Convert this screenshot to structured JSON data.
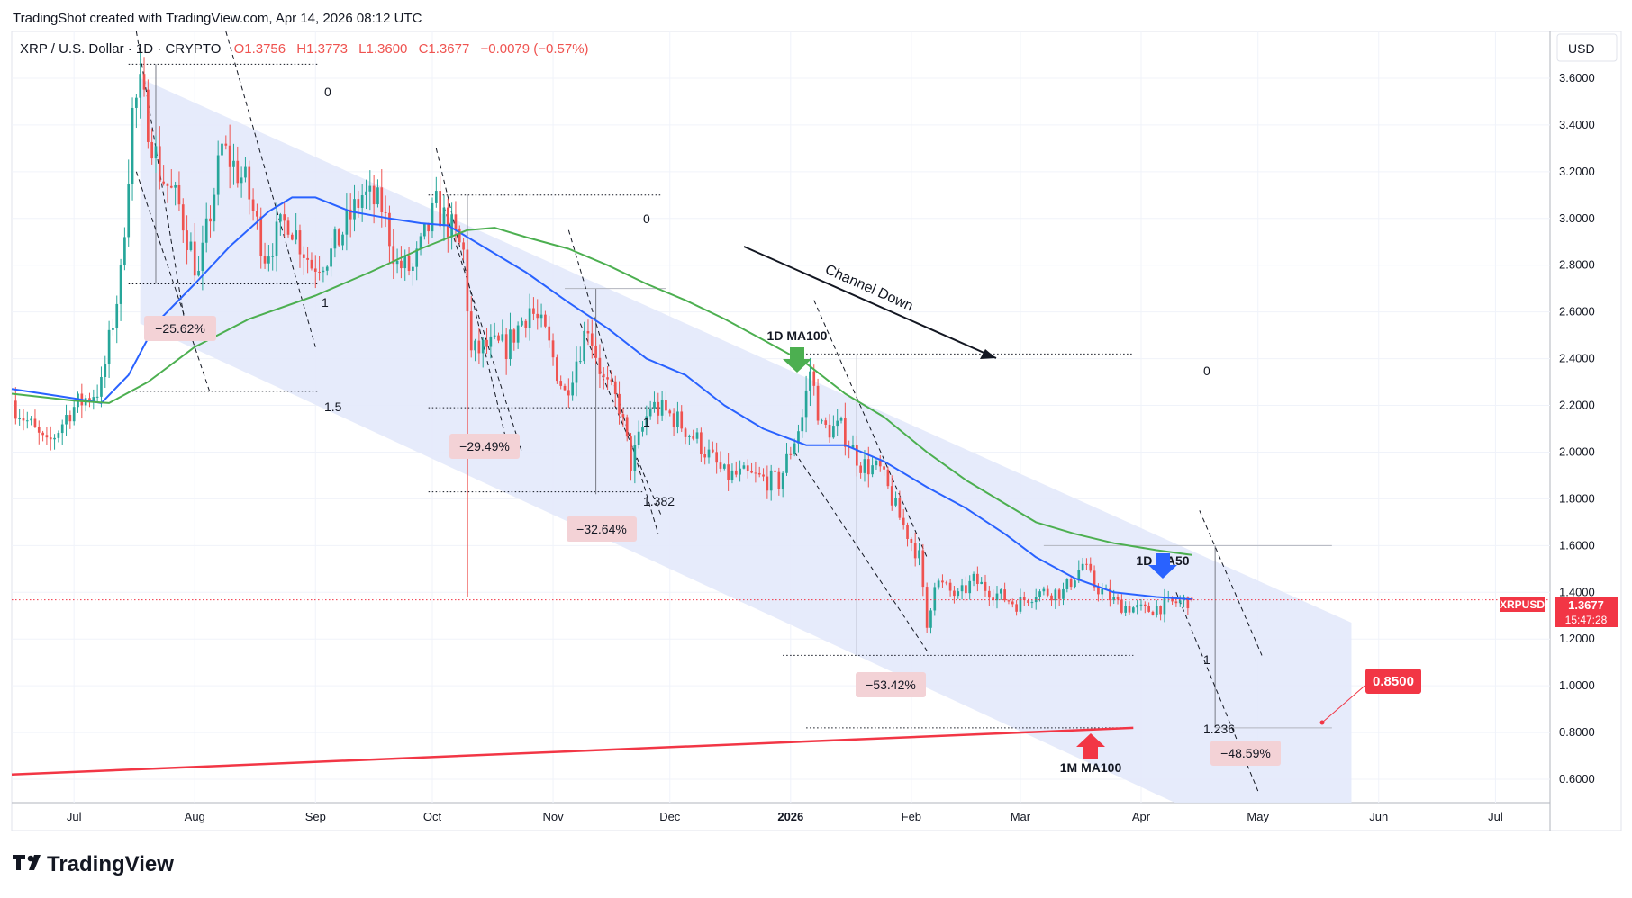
{
  "header": {
    "credit": "TradingShot created with TradingView.com, Apr 14, 2026 08:12 UTC"
  },
  "legend": {
    "symbol": "XRP / U.S. Dollar · 1D · CRYPTO",
    "open": "O1.3756",
    "high": "H1.3773",
    "low": "L1.3600",
    "close": "C1.3677",
    "change": "−0.0079 (−0.57%)"
  },
  "currency": "USD",
  "price_tag": {
    "symbol": "XRPUSD",
    "price": "1.3677",
    "countdown": "15:47:28"
  },
  "target_tag": {
    "label": "0.8500"
  },
  "brand": {
    "name": "TradingView"
  },
  "colors": {
    "up": "#26a69a",
    "down": "#ef5350",
    "ma50": "#2962ff",
    "ma100": "#4caf50",
    "mma100": "#f23645",
    "channel": "#e3e9fb",
    "pct_box": "#f3d2d6",
    "tag": "#f23645"
  },
  "annotations": {
    "channel_label": "Channel Down",
    "ma100_label": "1D MA100",
    "ma50_label": "1D MA50",
    "mma100_label": "1M MA100"
  },
  "fib_labels": [
    {
      "id": "f1",
      "text": "0"
    },
    {
      "id": "f2",
      "text": "1"
    },
    {
      "id": "f3",
      "text": "1.5"
    },
    {
      "id": "f4",
      "text": "0"
    },
    {
      "id": "f5",
      "text": "1"
    },
    {
      "id": "f6",
      "text": "1.382"
    },
    {
      "id": "f7",
      "text": "0"
    },
    {
      "id": "f8",
      "text": "1"
    },
    {
      "id": "f9",
      "text": "1.236"
    }
  ],
  "pct_boxes": [
    {
      "id": "p1",
      "text": "−25.62%"
    },
    {
      "id": "p2",
      "text": "−29.49%"
    },
    {
      "id": "p3",
      "text": "−32.64%"
    },
    {
      "id": "p4",
      "text": "−53.42%"
    },
    {
      "id": "p5",
      "text": "−48.59%"
    }
  ],
  "chart_data": {
    "type": "candlestick",
    "title": "XRP / U.S. Dollar · 1D · CRYPTO",
    "xlabel": "",
    "ylabel": "",
    "y_scale": "linear",
    "ylim": [
      0.5,
      3.8
    ],
    "x_range": [
      "2025-06-15",
      "2026-07-15"
    ],
    "grid": true,
    "legend": "top-left",
    "x_tick_labels": [
      "Jul",
      "Aug",
      "Sep",
      "Oct",
      "Nov",
      "Dec",
      "2026",
      "Feb",
      "Mar",
      "Apr",
      "May",
      "Jun",
      "Jul"
    ],
    "y_tick_labels": [
      "0.6000",
      "0.8000",
      "1.0000",
      "1.2000",
      "1.4000",
      "1.6000",
      "1.8000",
      "2.0000",
      "2.2000",
      "2.4000",
      "2.6000",
      "2.8000",
      "3.0000",
      "3.2000",
      "3.4000",
      "3.6000"
    ],
    "price_anchors": [
      {
        "date": "2025-06-15",
        "close": 2.22
      },
      {
        "date": "2025-06-24",
        "close": 2.02
      },
      {
        "date": "2025-06-30",
        "close": 2.18
      },
      {
        "date": "2025-07-08",
        "close": 2.28
      },
      {
        "date": "2025-07-13",
        "close": 2.75
      },
      {
        "date": "2025-07-16",
        "close": 3.45
      },
      {
        "date": "2025-07-18",
        "close": 3.55
      },
      {
        "date": "2025-07-23",
        "close": 3.2
      },
      {
        "date": "2025-07-28",
        "close": 3.05
      },
      {
        "date": "2025-08-02",
        "close": 2.75
      },
      {
        "date": "2025-08-08",
        "close": 3.3
      },
      {
        "date": "2025-08-14",
        "close": 3.15
      },
      {
        "date": "2025-08-19",
        "close": 2.85
      },
      {
        "date": "2025-08-25",
        "close": 3.0
      },
      {
        "date": "2025-08-31",
        "close": 2.8
      },
      {
        "date": "2025-09-05",
        "close": 2.85
      },
      {
        "date": "2025-09-13",
        "close": 3.1
      },
      {
        "date": "2025-09-18",
        "close": 3.05
      },
      {
        "date": "2025-09-22",
        "close": 2.8
      },
      {
        "date": "2025-09-26",
        "close": 2.78
      },
      {
        "date": "2025-10-02",
        "close": 3.05
      },
      {
        "date": "2025-10-06",
        "close": 2.95
      },
      {
        "date": "2025-10-09",
        "close": 2.85
      },
      {
        "date": "2025-10-11",
        "close": 2.42
      },
      {
        "date": "2025-10-15",
        "close": 2.45
      },
      {
        "date": "2025-10-20",
        "close": 2.45
      },
      {
        "date": "2025-10-26",
        "close": 2.62
      },
      {
        "date": "2025-10-30",
        "close": 2.5
      },
      {
        "date": "2025-11-04",
        "close": 2.25
      },
      {
        "date": "2025-11-10",
        "close": 2.55
      },
      {
        "date": "2025-11-14",
        "close": 2.3
      },
      {
        "date": "2025-11-18",
        "close": 2.2
      },
      {
        "date": "2025-11-21",
        "close": 1.95
      },
      {
        "date": "2025-11-26",
        "close": 2.2
      },
      {
        "date": "2025-12-02",
        "close": 2.15
      },
      {
        "date": "2025-12-08",
        "close": 2.05
      },
      {
        "date": "2025-12-15",
        "close": 1.9
      },
      {
        "date": "2025-12-20",
        "close": 1.9
      },
      {
        "date": "2025-12-29",
        "close": 1.87
      },
      {
        "date": "2026-01-04",
        "close": 2.15
      },
      {
        "date": "2026-01-06",
        "close": 2.35
      },
      {
        "date": "2026-01-09",
        "close": 2.1
      },
      {
        "date": "2026-01-14",
        "close": 2.1
      },
      {
        "date": "2026-01-19",
        "close": 1.95
      },
      {
        "date": "2026-01-24",
        "close": 1.92
      },
      {
        "date": "2026-01-29",
        "close": 1.72
      },
      {
        "date": "2026-02-03",
        "close": 1.55
      },
      {
        "date": "2026-02-05",
        "close": 1.25
      },
      {
        "date": "2026-02-07",
        "close": 1.45
      },
      {
        "date": "2026-02-13",
        "close": 1.38
      },
      {
        "date": "2026-02-17",
        "close": 1.45
      },
      {
        "date": "2026-02-22",
        "close": 1.4
      },
      {
        "date": "2026-02-28",
        "close": 1.35
      },
      {
        "date": "2026-03-05",
        "close": 1.4
      },
      {
        "date": "2026-03-12",
        "close": 1.4
      },
      {
        "date": "2026-03-17",
        "close": 1.52
      },
      {
        "date": "2026-03-20",
        "close": 1.43
      },
      {
        "date": "2026-03-26",
        "close": 1.35
      },
      {
        "date": "2026-04-02",
        "close": 1.32
      },
      {
        "date": "2026-04-08",
        "close": 1.35
      },
      {
        "date": "2026-04-14",
        "close": 1.3677
      }
    ],
    "last_candle": {
      "date": "2026-04-14",
      "open": 1.3756,
      "high": 1.3773,
      "low": 1.36,
      "close": 1.3677
    },
    "series": [
      {
        "name": "1D MA50",
        "points": [
          {
            "date": "2025-06-15",
            "y": 2.27
          },
          {
            "date": "2025-07-01",
            "y": 2.23
          },
          {
            "date": "2025-07-08",
            "y": 2.21
          },
          {
            "date": "2025-07-15",
            "y": 2.33
          },
          {
            "date": "2025-07-22",
            "y": 2.55
          },
          {
            "date": "2025-08-01",
            "y": 2.72
          },
          {
            "date": "2025-08-10",
            "y": 2.88
          },
          {
            "date": "2025-08-20",
            "y": 3.03
          },
          {
            "date": "2025-08-26",
            "y": 3.09
          },
          {
            "date": "2025-09-01",
            "y": 3.09
          },
          {
            "date": "2025-09-10",
            "y": 3.03
          },
          {
            "date": "2025-09-20",
            "y": 3.0
          },
          {
            "date": "2025-09-28",
            "y": 2.98
          },
          {
            "date": "2025-10-05",
            "y": 2.97
          },
          {
            "date": "2025-10-15",
            "y": 2.87
          },
          {
            "date": "2025-10-25",
            "y": 2.77
          },
          {
            "date": "2025-11-05",
            "y": 2.64
          },
          {
            "date": "2025-11-15",
            "y": 2.53
          },
          {
            "date": "2025-11-25",
            "y": 2.4
          },
          {
            "date": "2025-12-05",
            "y": 2.33
          },
          {
            "date": "2025-12-15",
            "y": 2.2
          },
          {
            "date": "2025-12-25",
            "y": 2.1
          },
          {
            "date": "2026-01-05",
            "y": 2.03
          },
          {
            "date": "2026-01-15",
            "y": 2.03
          },
          {
            "date": "2026-01-25",
            "y": 1.96
          },
          {
            "date": "2026-02-05",
            "y": 1.85
          },
          {
            "date": "2026-02-15",
            "y": 1.76
          },
          {
            "date": "2026-02-25",
            "y": 1.65
          },
          {
            "date": "2026-03-05",
            "y": 1.55
          },
          {
            "date": "2026-03-15",
            "y": 1.46
          },
          {
            "date": "2026-03-25",
            "y": 1.4
          },
          {
            "date": "2026-04-05",
            "y": 1.38
          },
          {
            "date": "2026-04-14",
            "y": 1.37
          }
        ]
      },
      {
        "name": "1D MA100",
        "points": [
          {
            "date": "2025-06-15",
            "y": 2.25
          },
          {
            "date": "2025-07-01",
            "y": 2.22
          },
          {
            "date": "2025-07-10",
            "y": 2.21
          },
          {
            "date": "2025-07-20",
            "y": 2.3
          },
          {
            "date": "2025-08-01",
            "y": 2.45
          },
          {
            "date": "2025-08-15",
            "y": 2.57
          },
          {
            "date": "2025-09-01",
            "y": 2.67
          },
          {
            "date": "2025-09-15",
            "y": 2.77
          },
          {
            "date": "2025-09-28",
            "y": 2.87
          },
          {
            "date": "2025-10-10",
            "y": 2.95
          },
          {
            "date": "2025-10-17",
            "y": 2.96
          },
          {
            "date": "2025-10-25",
            "y": 2.92
          },
          {
            "date": "2025-11-05",
            "y": 2.87
          },
          {
            "date": "2025-11-15",
            "y": 2.8
          },
          {
            "date": "2025-11-25",
            "y": 2.72
          },
          {
            "date": "2025-12-05",
            "y": 2.65
          },
          {
            "date": "2025-12-15",
            "y": 2.57
          },
          {
            "date": "2025-12-25",
            "y": 2.48
          },
          {
            "date": "2026-01-05",
            "y": 2.38
          },
          {
            "date": "2026-01-15",
            "y": 2.25
          },
          {
            "date": "2026-01-25",
            "y": 2.15
          },
          {
            "date": "2026-02-05",
            "y": 2.0
          },
          {
            "date": "2026-02-15",
            "y": 1.88
          },
          {
            "date": "2026-02-25",
            "y": 1.78
          },
          {
            "date": "2026-03-05",
            "y": 1.7
          },
          {
            "date": "2026-03-15",
            "y": 1.65
          },
          {
            "date": "2026-03-25",
            "y": 1.61
          },
          {
            "date": "2026-04-05",
            "y": 1.58
          },
          {
            "date": "2026-04-14",
            "y": 1.56
          }
        ]
      },
      {
        "name": "1M MA100",
        "points": [
          {
            "date": "2025-06-15",
            "y": 0.62
          },
          {
            "date": "2026-03-30",
            "y": 0.82
          }
        ]
      }
    ],
    "channel": {
      "upper": [
        {
          "date": "2025-07-18",
          "y": 3.6
        },
        {
          "date": "2026-05-25",
          "y": 1.27
        }
      ],
      "lower": [
        {
          "date": "2025-07-18",
          "y": 2.55
        },
        {
          "date": "2026-05-25",
          "y": 0.15
        }
      ]
    },
    "annotations": [
      {
        "text": "Channel Down",
        "type": "arrow_label"
      },
      {
        "text": "1D MA100",
        "type": "arrow_label",
        "date": "2026-01-03"
      },
      {
        "text": "1D MA50",
        "type": "arrow_label",
        "date": "2026-04-01"
      },
      {
        "text": "1M MA100",
        "type": "arrow_label",
        "date": "2026-03-18"
      }
    ],
    "fib_levels": [
      {
        "label": "0",
        "y": 3.66
      },
      {
        "label": "1",
        "y": 2.72
      },
      {
        "label": "1.5",
        "y": 2.26
      },
      {
        "label": "0",
        "y": 3.1
      },
      {
        "label": "1",
        "y": 2.19
      },
      {
        "label": "1.382",
        "y": 1.83
      },
      {
        "label": "0",
        "y": 2.42
      },
      {
        "label": "1",
        "y": 1.13
      },
      {
        "label": "1.236",
        "y": 0.82
      }
    ],
    "measures": [
      {
        "label": "−25.62%",
        "from": 3.66,
        "to": 2.72
      },
      {
        "label": "−29.49%",
        "from": 3.1,
        "to": 2.19
      },
      {
        "label": "−32.64%",
        "from": 2.7,
        "to": 1.82
      },
      {
        "label": "−53.42%",
        "from": 2.42,
        "to": 1.13
      },
      {
        "label": "−48.59%",
        "from": 1.6,
        "to": 0.82
      }
    ],
    "target": {
      "label": "0.8500",
      "y": 0.85
    }
  }
}
